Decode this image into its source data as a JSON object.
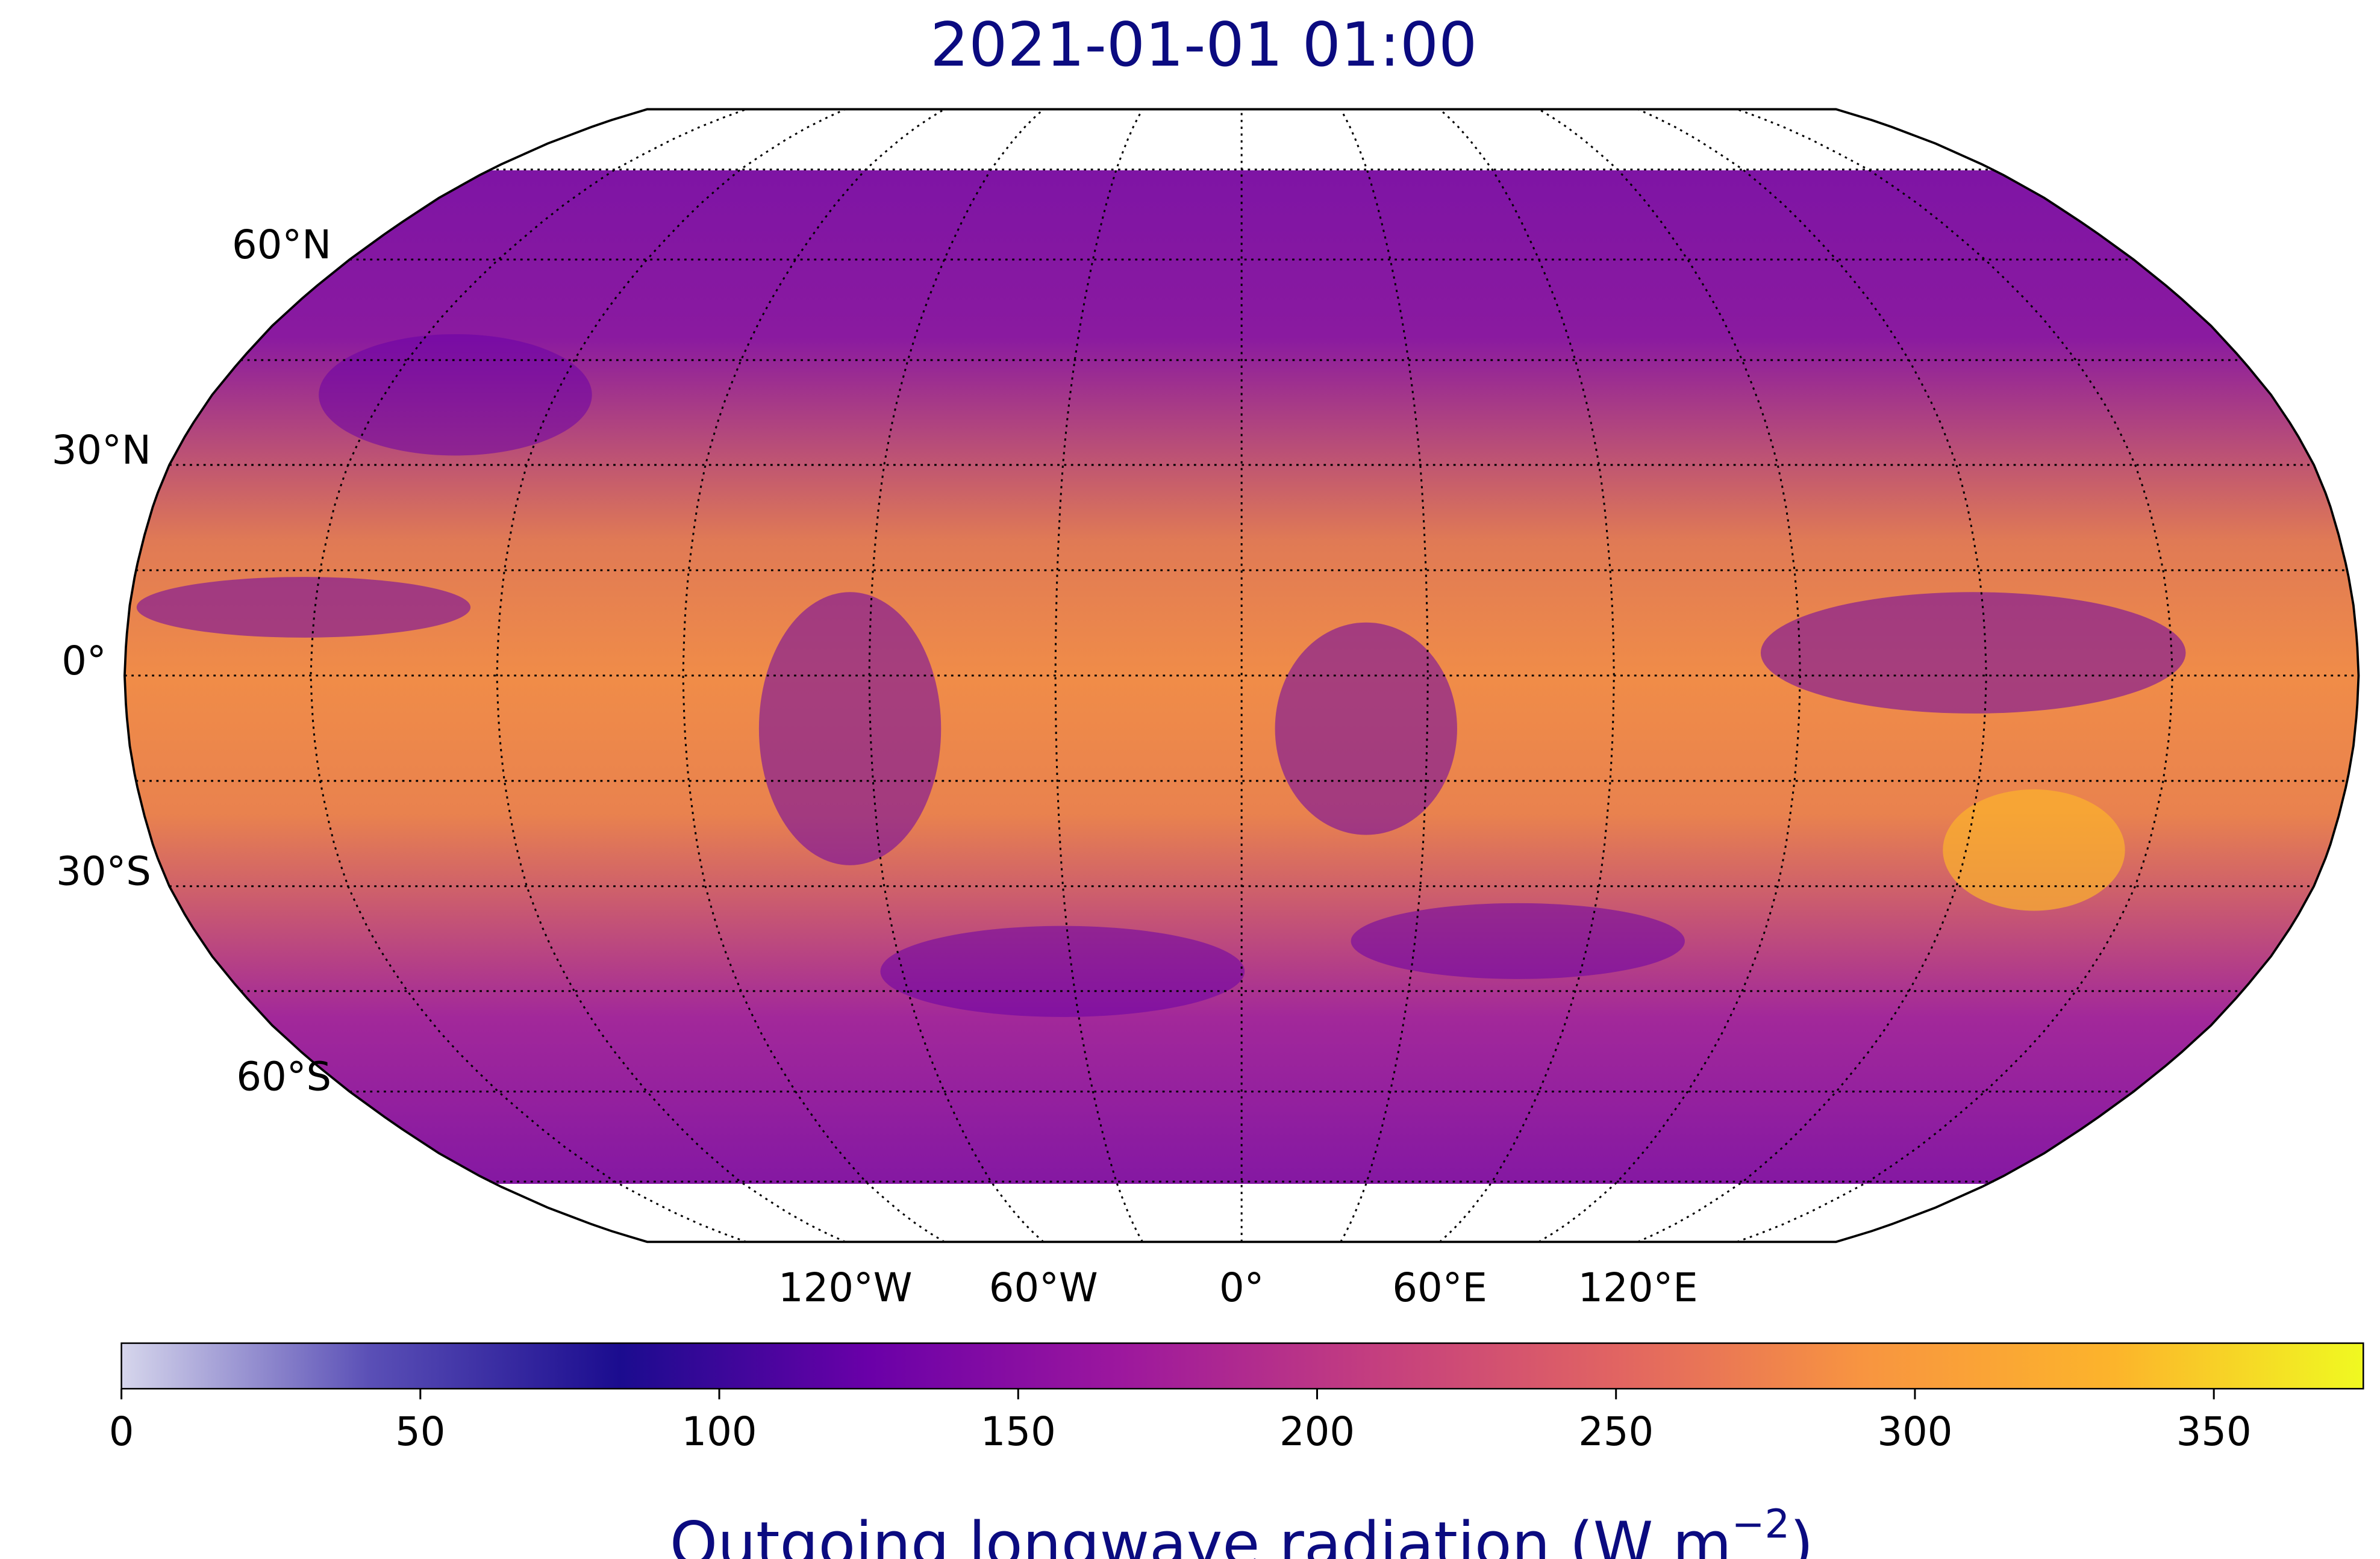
{
  "chart_data": {
    "type": "map",
    "title": "2021-01-01 01:00",
    "parallels": [
      -75,
      -60,
      -45,
      -30,
      -15,
      0,
      15,
      30,
      45,
      60,
      75
    ],
    "meridians": [
      -150,
      -120,
      -90,
      -60,
      -30,
      0,
      30,
      60,
      90,
      120,
      150
    ],
    "lat_labels": [
      {
        "value": 60,
        "label": "60°N"
      },
      {
        "value": 30,
        "label": "30°N"
      },
      {
        "value": 0,
        "label": "0°"
      },
      {
        "value": -30,
        "label": "30°S"
      },
      {
        "value": -60,
        "label": "60°S"
      }
    ],
    "lon_labels": [
      {
        "value": -120,
        "label": "120°W"
      },
      {
        "value": -60,
        "label": "60°W"
      },
      {
        "value": 0,
        "label": "0°"
      },
      {
        "value": 60,
        "label": "60°E"
      },
      {
        "value": 120,
        "label": "120°E"
      }
    ],
    "colorbar": {
      "label": "Outgoing longwave radiation (W m",
      "label_sup": "−2",
      "label_end": ")",
      "lim": [
        0,
        375
      ],
      "ticks": [
        0,
        50,
        100,
        150,
        200,
        250,
        300,
        350
      ],
      "colors": [
        "#d6d6ec",
        "#5a4fb6",
        "#1b0c8f",
        "#6a00a8",
        "#9c179e",
        "#c33d80",
        "#e16462",
        "#f89540",
        "#fcb42b",
        "#f0f921"
      ]
    }
  }
}
